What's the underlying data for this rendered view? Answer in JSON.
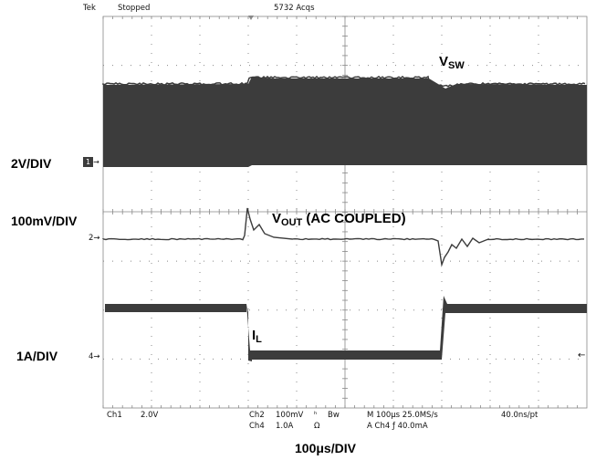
{
  "header": {
    "brand": "Tek",
    "state": "Stopped",
    "acquisitions": "5732 Acqs"
  },
  "labels": {
    "ch1_scale": "2V/DIV",
    "ch2_scale": "100mV/DIV",
    "ch4_scale": "1A/DIV",
    "timebase": "100μs/DIV",
    "vsw_main": "V",
    "vsw_sub": "SW",
    "vout_main": "V",
    "vout_sub": "OUT",
    "vout_suffix": " (AC COUPLED)",
    "il_main": "I",
    "il_sub": "L"
  },
  "markers": {
    "ch1": "1",
    "ch2": "2",
    "ch4": "4"
  },
  "readout": {
    "ch1": "Ch1",
    "ch1_scale": "2.0V",
    "ch2": "Ch2",
    "ch2_scale": "100mV",
    "ch2_bw": "ʰ",
    "bw": "Bw",
    "ch4": "Ch4",
    "ch4_scale": "1.0A",
    "ch4_impedance": "Ω",
    "horizontal": "M 100μs 25.0MS/s",
    "trigger": "A  Ch4  ƒ  40.0mA",
    "record": "40.0ns/pt"
  },
  "colors": {
    "trace": "#3c3c3c",
    "grid": "#888888",
    "background": "#ffffff"
  }
}
